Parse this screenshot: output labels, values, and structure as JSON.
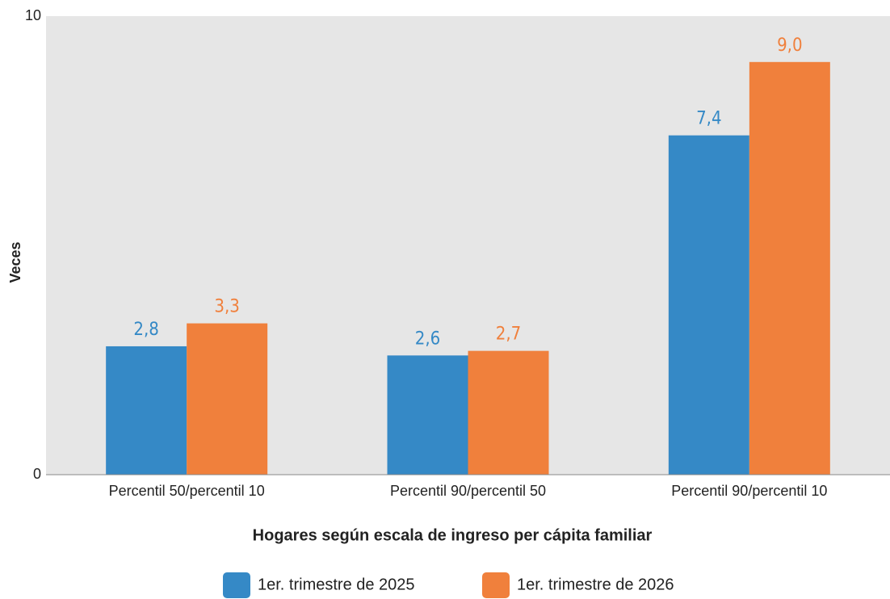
{
  "chart_data": {
    "type": "bar",
    "y_label": "Veces",
    "x_label": "Hogares según escala de ingreso per cápita familiar",
    "categories": [
      "Percentil 50/percentil 10",
      "Percentil 90/percentil 50",
      "Percentil 90/percentil 10"
    ],
    "series": [
      {
        "name": "1er. trimestre de 2025",
        "color": "#3589c6",
        "values": [
          2.8,
          2.6,
          7.4
        ],
        "value_labels": [
          "2,8",
          "2,6",
          "7,4"
        ]
      },
      {
        "name": "1er. trimestre de 2026",
        "color": "#f0803c",
        "values": [
          3.3,
          2.7,
          9.0
        ],
        "value_labels": [
          "3,3",
          "2,7",
          "9,0"
        ]
      }
    ],
    "ylim": [
      0,
      10
    ],
    "yticks": [
      0,
      10
    ],
    "legend": "bottom",
    "background": "#e6e6e6"
  }
}
